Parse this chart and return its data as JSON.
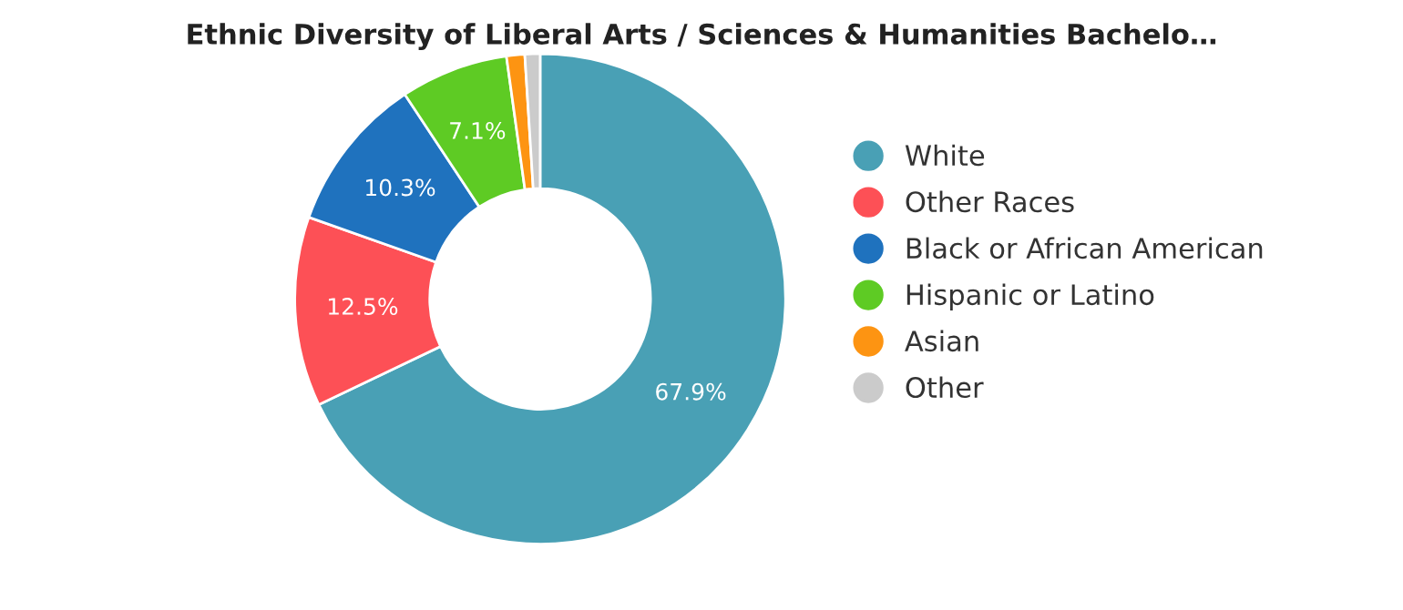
{
  "chart_data": {
    "type": "donut",
    "title": "Ethnic Diversity of Liberal Arts / Sciences & Humanities Bachelo…",
    "categories": [
      "White",
      "Other Races",
      "Black or African American",
      "Hispanic or Latino",
      "Asian",
      "Other"
    ],
    "values": [
      67.9,
      12.5,
      10.3,
      7.1,
      1.2,
      1.0
    ],
    "colors": [
      "#49a0b5",
      "#fd5056",
      "#1f72be",
      "#5ecb24",
      "#fd9412",
      "#cbcbcb"
    ],
    "value_labels": [
      "67.9%",
      "12.5%",
      "10.3%",
      "7.1%",
      null,
      null
    ],
    "legend": "right"
  }
}
